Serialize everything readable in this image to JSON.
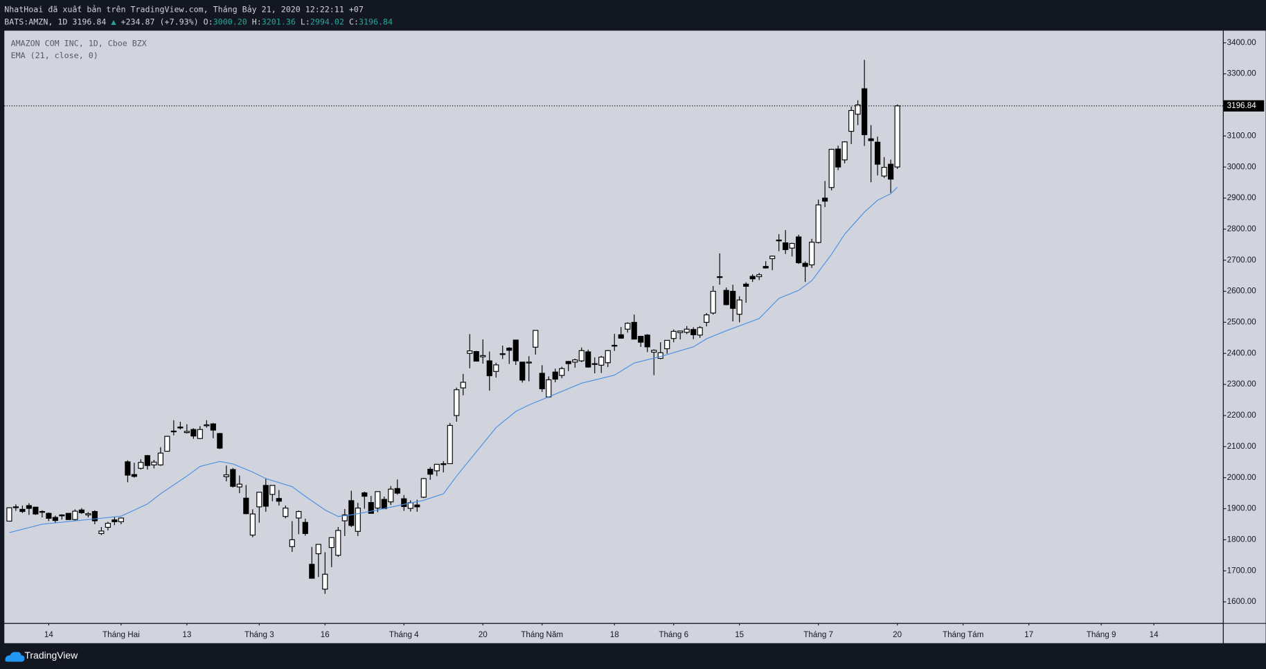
{
  "header": {
    "byline": "NhatHoai đã xuất bản trên TradingView.com, Tháng Bảy 21, 2020 12:22:11 +07",
    "symbol": "BATS:AMZN, 1D",
    "last": "3196.84",
    "change": "+234.87 (+7.93%)",
    "ohlc": [
      {
        "label": "O:",
        "value": "3000.20"
      },
      {
        "label": "H:",
        "value": "3201.36"
      },
      {
        "label": "L:",
        "value": "2994.02"
      },
      {
        "label": "C:",
        "value": "3196.84"
      }
    ]
  },
  "chart_data": {
    "type": "candlestick",
    "title": "AMAZON COM INC, 1D, Cboe BZX",
    "up_color": "#ffffff",
    "down_color": "#000000",
    "background": "#d1d4dc",
    "open": [
      1860,
      1904,
      1898,
      1910,
      1905,
      1890,
      1885,
      1872,
      1880,
      1885,
      1865,
      1896,
      1880,
      1891,
      1820,
      1840,
      1864,
      1858,
      2051,
      2010,
      2030,
      2071,
      2041,
      2041,
      2085,
      2150,
      2163,
      2145,
      2155,
      2126,
      2167,
      2173,
      2142,
      2003,
      2026,
      1970,
      1934,
      1815,
      1906,
      1975,
      1946,
      1933,
      1875,
      1778,
      1870,
      1856,
      1721,
      1755,
      1641,
      1775,
      1750,
      1861,
      1926,
      1827,
      1951,
      1920,
      1902,
      1930,
      1922,
      1965,
      1932,
      1901,
      1912,
      1937,
      2027,
      2022,
      2045,
      2045,
      2200,
      2289,
      2400,
      2406,
      2389,
      2376,
      2342,
      2398,
      2417,
      2443,
      2372,
      2369,
      2420,
      2336,
      2260,
      2340,
      2329,
      2374,
      2372,
      2376,
      2405,
      2367,
      2362,
      2370,
      2425,
      2460,
      2478,
      2500,
      2455,
      2459,
      2404,
      2384,
      2415,
      2448,
      2467,
      2468,
      2477,
      2459,
      2500,
      2530,
      2645,
      2603,
      2600,
      2526,
      2623,
      2648,
      2647,
      2680,
      2705,
      2765,
      2756,
      2739,
      2775,
      2690,
      2685,
      2757,
      2900,
      2934,
      3058,
      3023,
      3115,
      3170,
      3252,
      3091,
      3080,
      2971,
      3009,
      3000.2
    ],
    "high": [
      1904,
      1914,
      1910,
      1918,
      1906,
      1895,
      1888,
      1878,
      1882,
      1886,
      1898,
      1902,
      1889,
      1895,
      1841,
      1858,
      1874,
      1872,
      2056,
      2048,
      2059,
      2073,
      2057,
      2098,
      2135,
      2185,
      2180,
      2172,
      2159,
      2166,
      2185,
      2176,
      2144,
      2039,
      2031,
      2007,
      1976,
      1898,
      1954,
      1996,
      1975,
      1960,
      1910,
      1860,
      1894,
      1868,
      1777,
      1786,
      1760,
      1807,
      1841,
      1899,
      1958,
      1919,
      1955,
      1941,
      1956,
      1939,
      1973,
      1994,
      1944,
      1927,
      1929,
      1999,
      2034,
      2044,
      2053,
      2176,
      2290,
      2334,
      2462,
      2408,
      2445,
      2406,
      2370,
      2425,
      2420,
      2444,
      2373,
      2391,
      2475,
      2362,
      2326,
      2351,
      2357,
      2376,
      2383,
      2419,
      2412,
      2387,
      2392,
      2411,
      2463,
      2485,
      2500,
      2525,
      2456,
      2462,
      2413,
      2436,
      2442,
      2477,
      2473,
      2488,
      2484,
      2488,
      2530,
      2617,
      2722,
      2612,
      2621,
      2584,
      2629,
      2655,
      2659,
      2697,
      2715,
      2784,
      2797,
      2756,
      2782,
      2696,
      2769,
      2895,
      2955,
      3059,
      3069,
      3083,
      3194,
      3215,
      3345,
      3135,
      3098,
      3032,
      3024,
      3201.36
    ],
    "low": [
      1860,
      1893,
      1886,
      1880,
      1880,
      1872,
      1860,
      1855,
      1865,
      1864,
      1860,
      1883,
      1872,
      1850,
      1815,
      1830,
      1847,
      1850,
      1985,
      2000,
      2026,
      2026,
      2030,
      2038,
      2084,
      2136,
      2155,
      2142,
      2125,
      2124,
      2161,
      2127,
      2092,
      1988,
      1968,
      1950,
      1882,
      1808,
      1855,
      1890,
      1924,
      1910,
      1869,
      1761,
      1818,
      1813,
      1675,
      1680,
      1626,
      1712,
      1745,
      1812,
      1841,
      1812,
      1900,
      1885,
      1889,
      1899,
      1912,
      1945,
      1893,
      1891,
      1890,
      1934,
      1993,
      2005,
      2017,
      2045,
      2180,
      2265,
      2352,
      2374,
      2367,
      2280,
      2322,
      2382,
      2366,
      2363,
      2306,
      2310,
      2396,
      2276,
      2257,
      2307,
      2320,
      2343,
      2354,
      2372,
      2354,
      2336,
      2337,
      2356,
      2408,
      2447,
      2467,
      2445,
      2421,
      2404,
      2330,
      2381,
      2399,
      2436,
      2445,
      2462,
      2446,
      2450,
      2487,
      2525,
      2621,
      2555,
      2503,
      2500,
      2563,
      2630,
      2636,
      2673,
      2668,
      2729,
      2720,
      2712,
      2688,
      2630,
      2675,
      2754,
      2871,
      2925,
      2990,
      3012,
      3074,
      3135,
      3068,
      2951,
      2973,
      2965,
      2917,
      2994.02
    ],
    "close": [
      1903,
      1906,
      1891,
      1901,
      1883,
      1891,
      1869,
      1862,
      1877,
      1865,
      1892,
      1887,
      1884,
      1861,
      1828,
      1853,
      1858,
      1870,
      2008,
      2004,
      2049,
      2039,
      2050,
      2079,
      2133,
      2150,
      2160,
      2149,
      2134,
      2155,
      2170,
      2153,
      2095,
      2009,
      1972,
      1979,
      1884,
      1883,
      1953,
      1908,
      1975,
      1924,
      1902,
      1800,
      1891,
      1820,
      1676,
      1785,
      1689,
      1807,
      1830,
      1880,
      1846,
      1902,
      1940,
      1885,
      1955,
      1900,
      1963,
      1950,
      1907,
      1919,
      1906,
      1997,
      2011,
      2043,
      2042,
      2168,
      2283,
      2307,
      2408,
      2375,
      2393,
      2328,
      2363,
      2399,
      2410,
      2376,
      2314,
      2372,
      2474,
      2286,
      2315,
      2317,
      2351,
      2367,
      2379,
      2409,
      2356,
      2367,
      2388,
      2409,
      2426,
      2449,
      2497,
      2446,
      2436,
      2421,
      2410,
      2402,
      2442,
      2471,
      2472,
      2478,
      2460,
      2483,
      2524,
      2600,
      2647,
      2557,
      2545,
      2572,
      2616,
      2640,
      2653,
      2675,
      2713,
      2764,
      2734,
      2754,
      2692,
      2680,
      2758,
      2878,
      2890,
      3057,
      3000,
      3081,
      3182,
      3200,
      3104,
      3085,
      3009,
      2999,
      2961,
      3196.84
    ],
    "series": [
      {
        "name": "EMA (21, close, 0)",
        "color": "#4a90e2",
        "x": [
          0,
          5,
          12,
          17,
          21,
          23,
          27,
          29,
          32,
          34,
          37,
          39,
          43,
          45,
          48,
          50,
          52,
          56,
          60,
          63,
          66,
          68,
          72,
          74,
          77,
          79,
          82,
          87,
          92,
          95,
          99,
          104,
          106,
          109,
          114,
          117,
          120,
          122,
          125,
          127,
          130,
          132,
          134,
          135
        ],
        "values": [
          1823,
          1850,
          1865,
          1876,
          1915,
          1948,
          2005,
          2036,
          2052,
          2044,
          2018,
          1997,
          1971,
          1940,
          1896,
          1875,
          1880,
          1896,
          1914,
          1927,
          1948,
          2005,
          2109,
          2161,
          2213,
          2234,
          2260,
          2304,
          2330,
          2369,
          2390,
          2421,
          2447,
          2473,
          2512,
          2577,
          2603,
          2634,
          2719,
          2784,
          2855,
          2893,
          2914,
          2935
        ]
      }
    ],
    "xlim": [
      -0.75,
      184.5
    ],
    "xticks": [
      {
        "value": 6,
        "label": "14"
      },
      {
        "value": 17,
        "label": "Tháng Hai"
      },
      {
        "value": 27,
        "label": "13"
      },
      {
        "value": 38,
        "label": "Tháng 3"
      },
      {
        "value": 48,
        "label": "16"
      },
      {
        "value": 60,
        "label": "Tháng 4"
      },
      {
        "value": 72,
        "label": "20"
      },
      {
        "value": 81,
        "label": "Tháng Năm"
      },
      {
        "value": 92,
        "label": "18"
      },
      {
        "value": 101,
        "label": "Tháng 6"
      },
      {
        "value": 111,
        "label": "15"
      },
      {
        "value": 123,
        "label": "Tháng 7"
      },
      {
        "value": 135,
        "label": "20"
      },
      {
        "value": 145,
        "label": "Tháng Tám"
      },
      {
        "value": 155,
        "label": "17"
      },
      {
        "value": 166,
        "label": "Tháng 9"
      },
      {
        "value": 174,
        "label": "14"
      }
    ],
    "ylim": [
      1532,
      3439
    ],
    "yticks": [
      {
        "value": 1600,
        "label": "1600.00"
      },
      {
        "value": 1700,
        "label": "1700.00"
      },
      {
        "value": 1800,
        "label": "1800.00"
      },
      {
        "value": 1900,
        "label": "1900.00"
      },
      {
        "value": 2000,
        "label": "2000.00"
      },
      {
        "value": 2100,
        "label": "2100.00"
      },
      {
        "value": 2200,
        "label": "2200.00"
      },
      {
        "value": 2300,
        "label": "2300.00"
      },
      {
        "value": 2400,
        "label": "2400.00"
      },
      {
        "value": 2500,
        "label": "2500.00"
      },
      {
        "value": 2600,
        "label": "2600.00"
      },
      {
        "value": 2700,
        "label": "2700.00"
      },
      {
        "value": 2800,
        "label": "2800.00"
      },
      {
        "value": 2900,
        "label": "2900.00"
      },
      {
        "value": 3000,
        "label": "3000.00"
      },
      {
        "value": 3100,
        "label": "3100.00"
      },
      {
        "value": 3200,
        "label": "3200.00"
      },
      {
        "value": 3300,
        "label": "3300.00"
      },
      {
        "value": 3400,
        "label": "3400.00"
      }
    ],
    "grid": false
  },
  "footer": {
    "brand": "TradingView"
  }
}
